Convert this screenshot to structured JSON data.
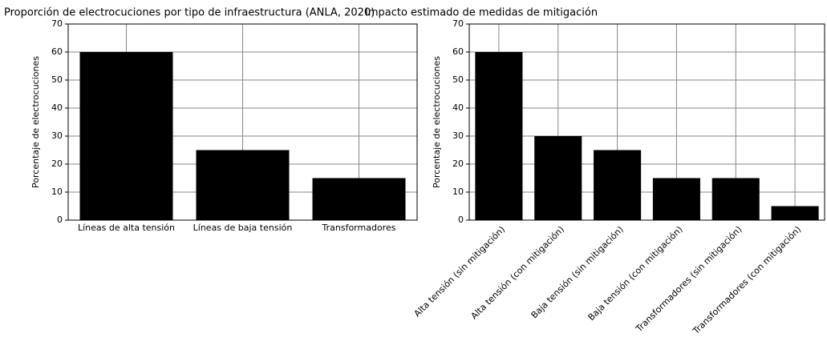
{
  "chart_data": [
    {
      "type": "bar",
      "title": "Proporción de electrocuciones por tipo de infraestructura (ANLA, 2020)",
      "ylabel": "Porcentaje de electrocuciones",
      "categories": [
        "Líneas de alta tensión",
        "Líneas de baja tensión",
        "Transformadores"
      ],
      "values": [
        60,
        25,
        15
      ],
      "color": "#000000",
      "ylim": [
        0,
        70
      ],
      "yticks": [
        0,
        10,
        20,
        30,
        40,
        50,
        60,
        70
      ],
      "grid": true
    },
    {
      "type": "bar",
      "title": "Impacto estimado de medidas de mitigación",
      "ylabel": "Porcentaje de electrocuciones",
      "categories": [
        "Alta tensión (sin mitigación)",
        "Alta tensión (con mitigación)",
        "Baja tensión (sin mitigación)",
        "Baja tensión (con mitigación)",
        "Transformadores (sin mitigación)",
        "Transformadores (con mitigación)"
      ],
      "values": [
        60,
        30,
        25,
        15,
        15,
        5
      ],
      "color": "#000000",
      "ylim": [
        0,
        70
      ],
      "yticks": [
        0,
        10,
        20,
        30,
        40,
        50,
        60,
        70
      ],
      "grid": true
    }
  ]
}
